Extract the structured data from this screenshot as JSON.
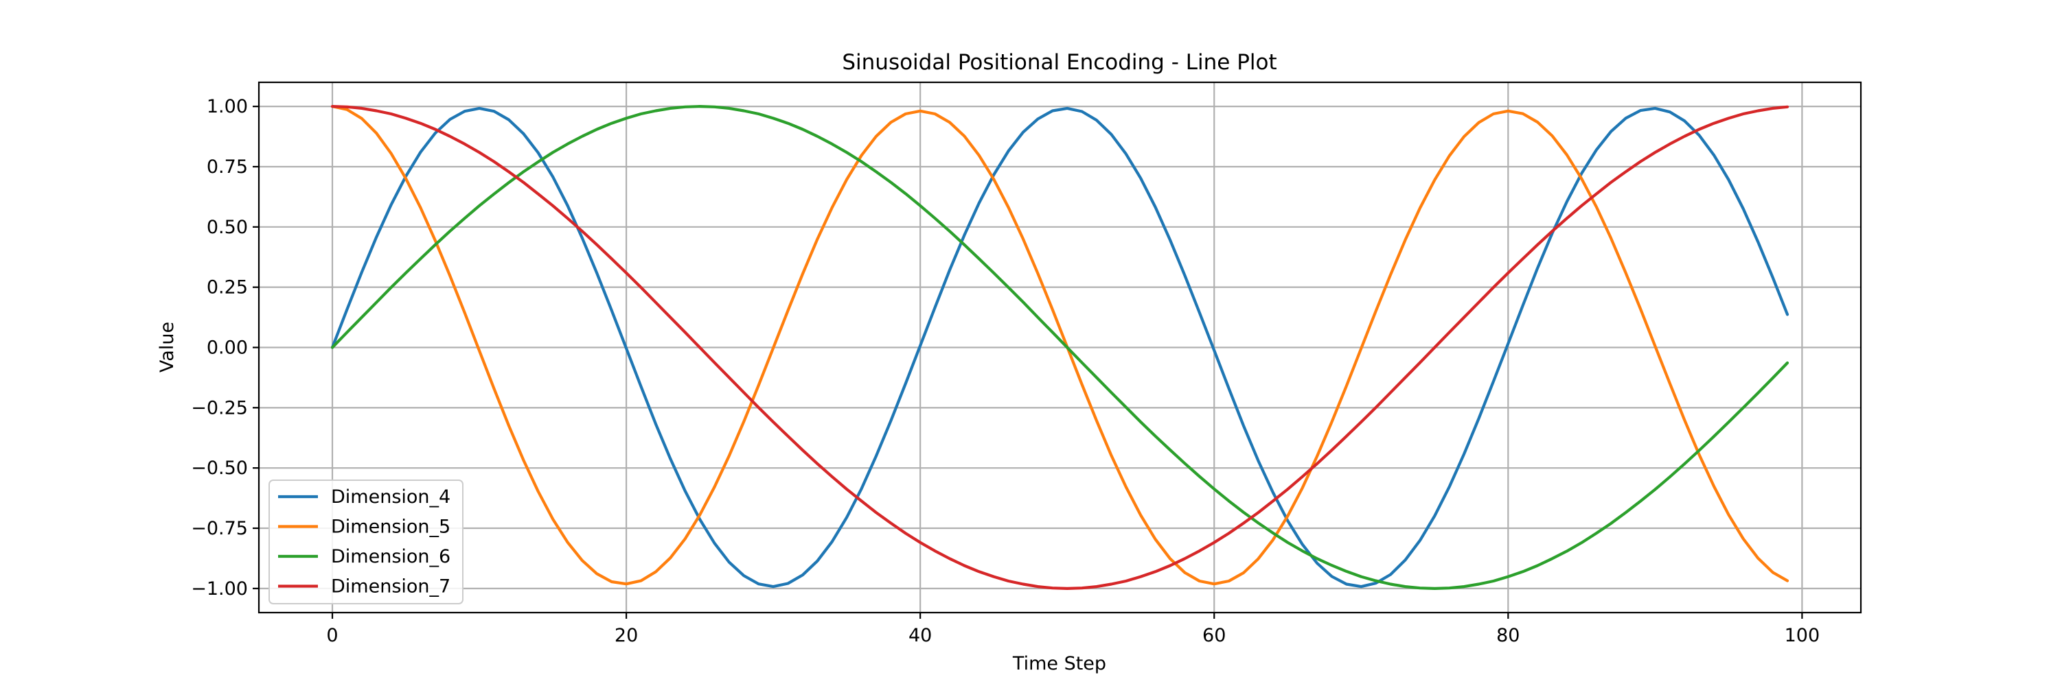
{
  "chart_data": {
    "type": "line",
    "title": "Sinusoidal Positional Encoding - Line Plot",
    "xlabel": "Time Step",
    "ylabel": "Value",
    "xlim": [
      -5,
      104
    ],
    "ylim": [
      -1.1,
      1.1
    ],
    "xticks": [
      0,
      20,
      40,
      60,
      80,
      100
    ],
    "xtick_labels": [
      "0",
      "20",
      "40",
      "60",
      "80",
      "100"
    ],
    "yticks": [
      -1.0,
      -0.75,
      -0.5,
      -0.25,
      0.0,
      0.25,
      0.5,
      0.75,
      1.0
    ],
    "ytick_labels": [
      "−1.00",
      "−0.75",
      "−0.50",
      "−0.25",
      "0.00",
      "0.25",
      "0.50",
      "0.75",
      "1.00"
    ],
    "grid": true,
    "legend_position": "lower-left",
    "x": [
      0,
      1,
      2,
      3,
      4,
      5,
      6,
      7,
      8,
      9,
      10,
      11,
      12,
      13,
      14,
      15,
      16,
      17,
      18,
      19,
      20,
      21,
      22,
      23,
      24,
      25,
      26,
      27,
      28,
      29,
      30,
      31,
      32,
      33,
      34,
      35,
      36,
      37,
      38,
      39,
      40,
      41,
      42,
      43,
      44,
      45,
      46,
      47,
      48,
      49,
      50,
      51,
      52,
      53,
      54,
      55,
      56,
      57,
      58,
      59,
      60,
      61,
      62,
      63,
      64,
      65,
      66,
      67,
      68,
      69,
      70,
      71,
      72,
      73,
      74,
      75,
      76,
      77,
      78,
      79,
      80,
      81,
      82,
      83,
      84,
      85,
      86,
      87,
      88,
      89,
      90,
      91,
      92,
      93,
      94,
      95,
      96,
      97,
      98,
      99
    ],
    "series": [
      {
        "name": "Dimension_4",
        "color": "#1f77b4",
        "values": [
          0.0,
          0.158,
          0.312,
          0.458,
          0.592,
          0.71,
          0.81,
          0.889,
          0.946,
          0.98,
          0.992,
          0.98,
          0.945,
          0.887,
          0.808,
          0.708,
          0.589,
          0.454,
          0.308,
          0.154,
          -0.004,
          -0.162,
          -0.317,
          -0.462,
          -0.595,
          -0.713,
          -0.812,
          -0.891,
          -0.947,
          -0.981,
          -0.992,
          -0.979,
          -0.944,
          -0.886,
          -0.806,
          -0.705,
          -0.586,
          -0.45,
          -0.304,
          -0.15,
          0.008,
          0.166,
          0.321,
          0.466,
          0.599,
          0.716,
          0.815,
          0.893,
          0.948,
          0.982,
          0.992,
          0.979,
          0.943,
          0.884,
          0.803,
          0.702,
          0.582,
          0.446,
          0.299,
          0.145,
          -0.012,
          -0.17,
          -0.325,
          -0.47,
          -0.602,
          -0.719,
          -0.817,
          -0.895,
          -0.95,
          -0.982,
          -0.992,
          -0.978,
          -0.942,
          -0.882,
          -0.801,
          -0.699,
          -0.578,
          -0.442,
          -0.295,
          -0.141,
          0.016,
          0.174,
          0.329,
          0.474,
          0.605,
          0.722,
          0.819,
          0.896,
          0.951,
          0.983,
          0.992,
          0.977,
          0.94,
          0.88,
          0.798,
          0.696,
          0.575,
          0.438,
          0.291,
          0.137
        ]
      },
      {
        "name": "Dimension_5",
        "color": "#ff7f0e",
        "values": [
          1.0,
          0.987,
          0.95,
          0.889,
          0.805,
          0.701,
          0.58,
          0.444,
          0.298,
          0.144,
          -0.014,
          -0.171,
          -0.324,
          -0.467,
          -0.597,
          -0.712,
          -0.808,
          -0.884,
          -0.939,
          -0.972,
          -0.981,
          -0.968,
          -0.931,
          -0.873,
          -0.794,
          -0.695,
          -0.579,
          -0.449,
          -0.307,
          -0.157,
          -0.002,
          0.153,
          0.305,
          0.449,
          0.58,
          0.697,
          0.797,
          0.876,
          0.934,
          0.969,
          0.981,
          0.969,
          0.934,
          0.877,
          0.797,
          0.698,
          0.581,
          0.45,
          0.307,
          0.157,
          0.002,
          -0.153,
          -0.304,
          -0.448,
          -0.579,
          -0.696,
          -0.796,
          -0.876,
          -0.934,
          -0.969,
          -0.981,
          -0.969,
          -0.935,
          -0.877,
          -0.798,
          -0.699,
          -0.583,
          -0.451,
          -0.309,
          -0.159,
          -0.004,
          0.151,
          0.302,
          0.446,
          0.578,
          0.695,
          0.795,
          0.875,
          0.933,
          0.969,
          0.981,
          0.97,
          0.935,
          0.878,
          0.799,
          0.7,
          0.584,
          0.453,
          0.31,
          0.161,
          0.006,
          -0.149,
          -0.301,
          -0.445,
          -0.576,
          -0.694,
          -0.794,
          -0.874,
          -0.933,
          -0.968
        ]
      },
      {
        "name": "Dimension_6",
        "color": "#2ca02c",
        "values": [
          0.0,
          0.063,
          0.125,
          0.187,
          0.249,
          0.309,
          0.368,
          0.426,
          0.482,
          0.536,
          0.588,
          0.637,
          0.684,
          0.729,
          0.77,
          0.809,
          0.844,
          0.876,
          0.905,
          0.93,
          0.951,
          0.969,
          0.982,
          0.992,
          0.998,
          1.0,
          0.998,
          0.992,
          0.982,
          0.969,
          0.951,
          0.93,
          0.905,
          0.876,
          0.844,
          0.809,
          0.771,
          0.729,
          0.685,
          0.638,
          0.588,
          0.536,
          0.482,
          0.426,
          0.368,
          0.309,
          0.249,
          0.188,
          0.125,
          0.063,
          0.0,
          -0.063,
          -0.125,
          -0.187,
          -0.248,
          -0.309,
          -0.368,
          -0.425,
          -0.481,
          -0.535,
          -0.587,
          -0.637,
          -0.684,
          -0.728,
          -0.77,
          -0.809,
          -0.844,
          -0.876,
          -0.904,
          -0.929,
          -0.951,
          -0.968,
          -0.982,
          -0.992,
          -0.998,
          -1.0,
          -0.998,
          -0.992,
          -0.982,
          -0.969,
          -0.951,
          -0.93,
          -0.905,
          -0.876,
          -0.845,
          -0.81,
          -0.771,
          -0.73,
          -0.685,
          -0.638,
          -0.589,
          -0.537,
          -0.483,
          -0.427,
          -0.369,
          -0.31,
          -0.25,
          -0.189,
          -0.127,
          -0.064
        ]
      },
      {
        "name": "Dimension_7",
        "color": "#d62728",
        "values": [
          1.0,
          0.998,
          0.992,
          0.982,
          0.969,
          0.951,
          0.93,
          0.905,
          0.876,
          0.844,
          0.809,
          0.771,
          0.729,
          0.685,
          0.637,
          0.588,
          0.536,
          0.482,
          0.426,
          0.368,
          0.309,
          0.249,
          0.187,
          0.125,
          0.063,
          0.0,
          -0.063,
          -0.125,
          -0.187,
          -0.249,
          -0.309,
          -0.368,
          -0.426,
          -0.482,
          -0.536,
          -0.588,
          -0.637,
          -0.685,
          -0.729,
          -0.771,
          -0.809,
          -0.844,
          -0.876,
          -0.905,
          -0.93,
          -0.951,
          -0.969,
          -0.982,
          -0.992,
          -0.998,
          -1.0,
          -0.998,
          -0.992,
          -0.982,
          -0.969,
          -0.951,
          -0.93,
          -0.905,
          -0.876,
          -0.844,
          -0.809,
          -0.771,
          -0.729,
          -0.685,
          -0.637,
          -0.588,
          -0.536,
          -0.482,
          -0.426,
          -0.368,
          -0.309,
          -0.249,
          -0.187,
          -0.125,
          -0.063,
          0.0,
          0.063,
          0.125,
          0.187,
          0.249,
          0.309,
          0.368,
          0.426,
          0.482,
          0.536,
          0.588,
          0.637,
          0.685,
          0.729,
          0.771,
          0.809,
          0.844,
          0.876,
          0.905,
          0.93,
          0.951,
          0.969,
          0.982,
          0.992,
          0.998
        ]
      }
    ]
  }
}
